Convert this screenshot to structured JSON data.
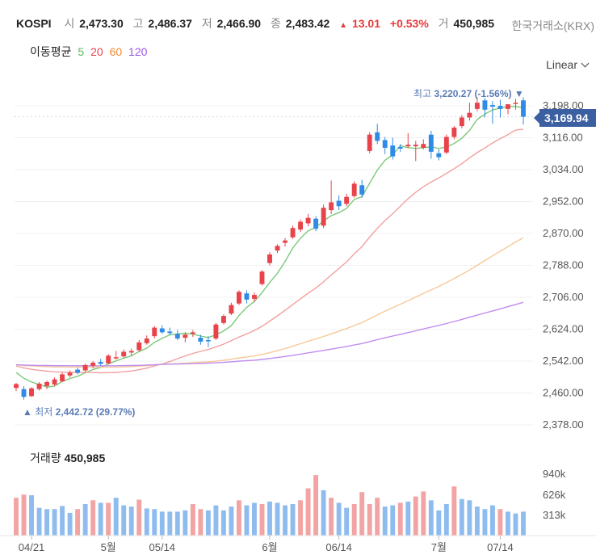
{
  "header": {
    "symbol": "KOSPI",
    "open_label": "시",
    "open": "2,473.30",
    "high_label": "고",
    "high": "2,486.37",
    "low_label": "저",
    "low": "2,466.90",
    "close_label": "종",
    "close": "2,483.42",
    "change": "13.01",
    "change_pct": "+0.53%",
    "volume_label": "거",
    "volume": "450,985",
    "exchange": "한국거래소(KRX)"
  },
  "ma_legend": {
    "label": "이동평균",
    "periods": [
      "5",
      "20",
      "60",
      "120"
    ]
  },
  "scale_mode": "Linear",
  "last_price": "3,169.94",
  "high_marker": {
    "label": "최고",
    "value": "3,220.27 (-1.56%)"
  },
  "low_marker": {
    "label": "최저",
    "value": "2,442.72 (29.77%)"
  },
  "volume_panel": {
    "label": "거래량",
    "value": "450,985"
  },
  "colors": {
    "up": "#e8434a",
    "down": "#2f8be6",
    "ma5": "#7cc97a",
    "ma20": "#f2a0a0",
    "ma60": "#f7c99a",
    "ma120": "#c08cf0",
    "vol_up": "#f2a3a3",
    "vol_down": "#8fbcef",
    "badge": "#3b5fa0"
  },
  "chart_data": [
    {
      "type": "candlestick",
      "title": "KOSPI",
      "ylim": [
        2378,
        3198
      ],
      "y_ticks": [
        "3,198.00",
        "3,116.00",
        "3,034.00",
        "2,952.00",
        "2,870.00",
        "2,788.00",
        "2,706.00",
        "2,624.00",
        "2,542.00",
        "2,460.00",
        "2,378.00"
      ],
      "x_ticks": [
        "04/21",
        "5월",
        "05/14",
        "6월",
        "06/14",
        "7월",
        "07/14"
      ],
      "candles": [
        [
          2473,
          2486,
          2465,
          2483
        ],
        [
          2470,
          2478,
          2443,
          2450
        ],
        [
          2452,
          2475,
          2450,
          2472
        ],
        [
          2470,
          2488,
          2466,
          2484
        ],
        [
          2478,
          2492,
          2470,
          2488
        ],
        [
          2482,
          2500,
          2478,
          2495
        ],
        [
          2490,
          2512,
          2488,
          2508
        ],
        [
          2505,
          2518,
          2500,
          2512
        ],
        [
          2520,
          2525,
          2508,
          2512
        ],
        [
          2518,
          2535,
          2514,
          2532
        ],
        [
          2530,
          2542,
          2524,
          2538
        ],
        [
          2540,
          2548,
          2530,
          2535
        ],
        [
          2536,
          2560,
          2534,
          2556
        ],
        [
          2550,
          2568,
          2546,
          2552
        ],
        [
          2554,
          2572,
          2550,
          2566
        ],
        [
          2564,
          2574,
          2556,
          2568
        ],
        [
          2570,
          2596,
          2566,
          2590
        ],
        [
          2588,
          2608,
          2584,
          2600
        ],
        [
          2606,
          2632,
          2600,
          2628
        ],
        [
          2626,
          2634,
          2612,
          2616
        ],
        [
          2618,
          2628,
          2608,
          2614
        ],
        [
          2612,
          2622,
          2596,
          2600
        ],
        [
          2602,
          2616,
          2590,
          2610
        ],
        [
          2612,
          2622,
          2604,
          2616
        ],
        [
          2602,
          2610,
          2584,
          2592
        ],
        [
          2596,
          2606,
          2578,
          2594
        ],
        [
          2600,
          2640,
          2596,
          2636
        ],
        [
          2640,
          2662,
          2636,
          2658
        ],
        [
          2664,
          2692,
          2660,
          2686
        ],
        [
          2690,
          2724,
          2686,
          2720
        ],
        [
          2716,
          2724,
          2690,
          2700
        ],
        [
          2702,
          2718,
          2694,
          2712
        ],
        [
          2740,
          2776,
          2736,
          2772
        ],
        [
          2794,
          2822,
          2788,
          2816
        ],
        [
          2826,
          2842,
          2820,
          2838
        ],
        [
          2846,
          2858,
          2836,
          2852
        ],
        [
          2860,
          2890,
          2856,
          2884
        ],
        [
          2880,
          2906,
          2874,
          2900
        ],
        [
          2896,
          2920,
          2888,
          2910
        ],
        [
          2908,
          2914,
          2876,
          2882
        ],
        [
          2890,
          2944,
          2884,
          2936
        ],
        [
          2930,
          3006,
          2920,
          2950
        ],
        [
          2954,
          2968,
          2930,
          2940
        ],
        [
          2946,
          2972,
          2940,
          2964
        ],
        [
          2966,
          3004,
          2962,
          2998
        ],
        [
          2994,
          3008,
          2962,
          2970
        ],
        [
          3082,
          3130,
          3076,
          3124
        ],
        [
          3130,
          3152,
          3100,
          3108
        ],
        [
          3110,
          3118,
          3074,
          3090
        ],
        [
          3096,
          3116,
          3060,
          3068
        ],
        [
          3092,
          3100,
          3080,
          3088
        ],
        [
          3094,
          3128,
          3090,
          3098
        ],
        [
          3094,
          3108,
          3056,
          3098
        ],
        [
          3090,
          3112,
          3086,
          3100
        ],
        [
          3124,
          3134,
          3062,
          3080
        ],
        [
          3076,
          3086,
          3058,
          3066
        ],
        [
          3078,
          3124,
          3074,
          3118
        ],
        [
          3118,
          3146,
          3112,
          3142
        ],
        [
          3146,
          3174,
          3140,
          3168
        ],
        [
          3168,
          3206,
          3160,
          3180
        ],
        [
          3190,
          3220,
          3184,
          3206
        ],
        [
          3212,
          3218,
          3168,
          3188
        ],
        [
          3200,
          3210,
          3152,
          3196
        ],
        [
          3198,
          3214,
          3168,
          3190
        ],
        [
          3190,
          3202,
          3176,
          3202
        ],
        [
          3204,
          3216,
          3188,
          3206
        ],
        [
          3212,
          3220,
          3150,
          3170
        ]
      ]
    },
    {
      "type": "bar",
      "title": "거래량",
      "y_ticks": [
        "940k",
        "626k",
        "313k"
      ],
      "values": [
        [
          600,
          1
        ],
        [
          650,
          1
        ],
        [
          640,
          0
        ],
        [
          440,
          0
        ],
        [
          420,
          0
        ],
        [
          420,
          0
        ],
        [
          470,
          0
        ],
        [
          360,
          0
        ],
        [
          420,
          1
        ],
        [
          500,
          0
        ],
        [
          560,
          1
        ],
        [
          520,
          0
        ],
        [
          520,
          1
        ],
        [
          600,
          0
        ],
        [
          480,
          0
        ],
        [
          460,
          0
        ],
        [
          570,
          1
        ],
        [
          430,
          0
        ],
        [
          420,
          0
        ],
        [
          380,
          0
        ],
        [
          380,
          0
        ],
        [
          380,
          0
        ],
        [
          400,
          0
        ],
        [
          500,
          1
        ],
        [
          420,
          1
        ],
        [
          400,
          0
        ],
        [
          480,
          0
        ],
        [
          400,
          0
        ],
        [
          460,
          0
        ],
        [
          560,
          1
        ],
        [
          480,
          0
        ],
        [
          520,
          0
        ],
        [
          500,
          1
        ],
        [
          540,
          0
        ],
        [
          520,
          0
        ],
        [
          480,
          0
        ],
        [
          500,
          0
        ],
        [
          560,
          1
        ],
        [
          750,
          1
        ],
        [
          960,
          1
        ],
        [
          720,
          0
        ],
        [
          600,
          1
        ],
        [
          520,
          0
        ],
        [
          440,
          0
        ],
        [
          500,
          1
        ],
        [
          690,
          1
        ],
        [
          500,
          1
        ],
        [
          600,
          1
        ],
        [
          460,
          0
        ],
        [
          480,
          0
        ],
        [
          520,
          1
        ],
        [
          540,
          0
        ],
        [
          620,
          1
        ],
        [
          700,
          1
        ],
        [
          560,
          0
        ],
        [
          400,
          0
        ],
        [
          500,
          0
        ],
        [
          780,
          1
        ],
        [
          580,
          0
        ],
        [
          560,
          0
        ],
        [
          460,
          0
        ],
        [
          420,
          0
        ],
        [
          480,
          0
        ],
        [
          420,
          1
        ],
        [
          380,
          0
        ],
        [
          350,
          0
        ],
        [
          380,
          0
        ]
      ]
    }
  ]
}
